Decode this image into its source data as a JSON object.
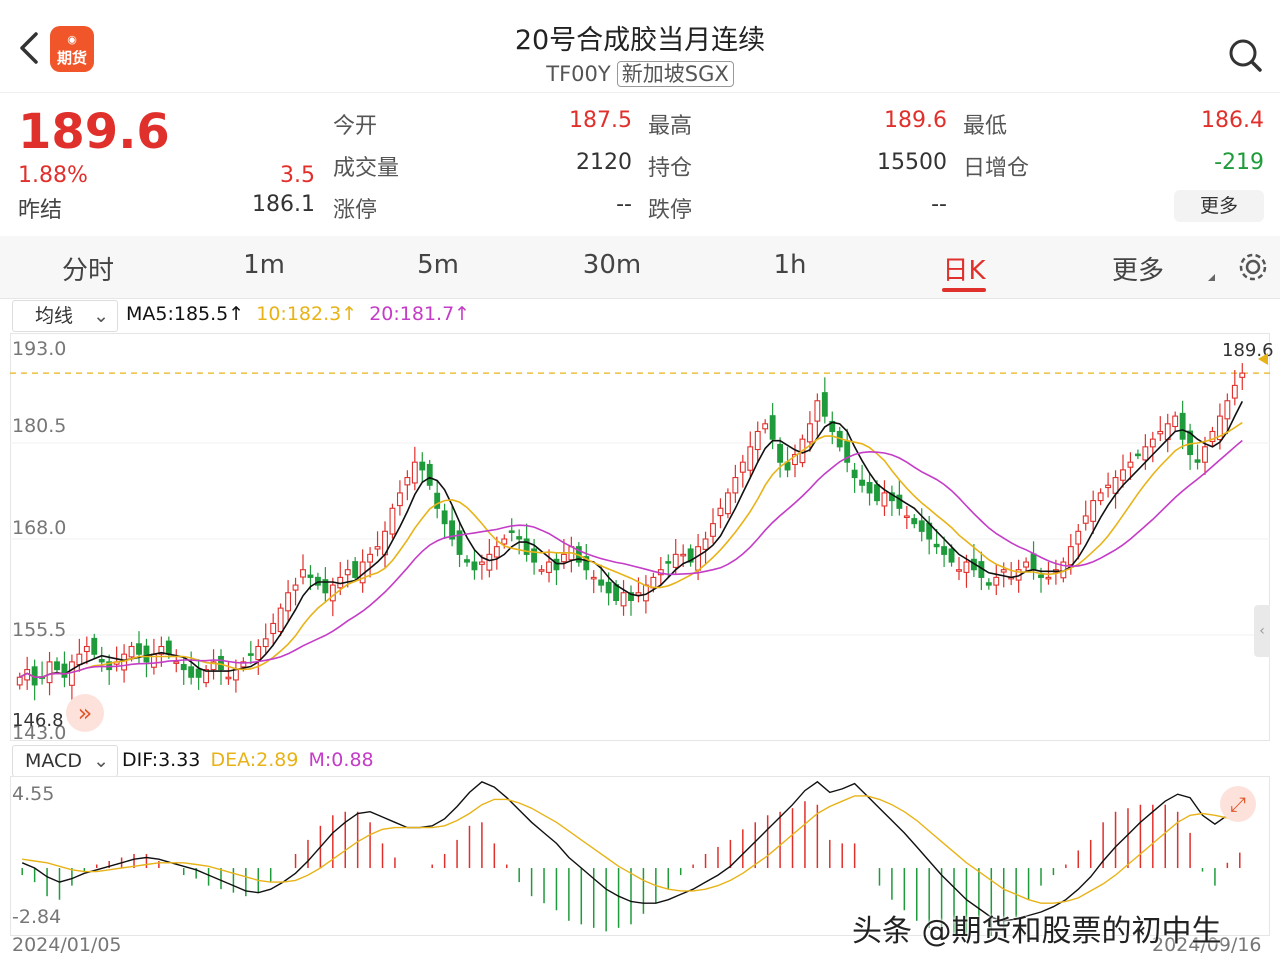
{
  "header": {
    "back_icon": "chevron-left-icon",
    "logo_text": "期货",
    "title": "20号合成胶当月连续",
    "code": "TF00Y",
    "exchange": "新加坡SGX",
    "search_icon": "search-icon"
  },
  "quote": {
    "price": "189.6",
    "change_pct": "1.88%",
    "change": "3.5",
    "prev_close_label": "昨结",
    "prev_close": "186.1",
    "open_label": "今开",
    "open": "187.5",
    "high_label": "最高",
    "high": "189.6",
    "low_label": "最低",
    "low": "186.4",
    "volume_label": "成交量",
    "volume": "2120",
    "oi_label": "持仓",
    "oi": "15500",
    "oi_change_label": "日增仓",
    "oi_change": "-219",
    "limit_up_label": "涨停",
    "limit_up": "--",
    "limit_down_label": "跌停",
    "limit_down": "--",
    "more_label": "更多",
    "up_color": "#e0302c",
    "down_color": "#1e9b3a"
  },
  "tabs": {
    "items": [
      "分时",
      "1m",
      "5m",
      "30m",
      "1h",
      "日K",
      "更多"
    ],
    "active": "日K",
    "gear_icon": "gear-icon"
  },
  "indicators": {
    "ma_select": "均线",
    "ma5": "MA5:185.5↑",
    "ma10": "10:182.3↑",
    "ma20": "20:181.7↑",
    "ma5_color": "#111111",
    "ma10_color": "#e8b318",
    "ma20_color": "#c43cc7",
    "macd_select": "MACD",
    "dif": "DIF:3.33",
    "dea": "DEA:2.89",
    "m": "M:0.88"
  },
  "chart_data": [
    {
      "type": "candlestick",
      "y_ticks": [
        "193.0",
        "180.5",
        "168.0",
        "155.5",
        "143.0"
      ],
      "ylim": [
        143.0,
        193.0
      ],
      "last_price_label": "189.6",
      "min_label": "146.8",
      "start_date": "2024/01/05",
      "end_date": "2024/09/16",
      "close_path": [
        150,
        151,
        149,
        150,
        152,
        151,
        150,
        152,
        153,
        154,
        153,
        152,
        151,
        152,
        153,
        154,
        153,
        152,
        153,
        154,
        153,
        152,
        151,
        150,
        150,
        151,
        152,
        151,
        150,
        151,
        152,
        153,
        154,
        155,
        157,
        159,
        161,
        162,
        164,
        163,
        162,
        161,
        162,
        163,
        164,
        163,
        165,
        166,
        167,
        169,
        172,
        174,
        176,
        178,
        177,
        175,
        172,
        170,
        168,
        166,
        165,
        164,
        165,
        166,
        167,
        168,
        169,
        168,
        166,
        165,
        164,
        165,
        164,
        166,
        167,
        165,
        164,
        163,
        162,
        161,
        160,
        161,
        160,
        161,
        162,
        163,
        164,
        165,
        166,
        166,
        165,
        167,
        168,
        170,
        172,
        174,
        176,
        178,
        180,
        182,
        183,
        181,
        178,
        177,
        179,
        181,
        183,
        186,
        184,
        182,
        180,
        178,
        176,
        175,
        174,
        173,
        174,
        173,
        172,
        171,
        170,
        169,
        168,
        167,
        166,
        165,
        164,
        165,
        164,
        163,
        162,
        163,
        164,
        163,
        164,
        165,
        164,
        163,
        163,
        164,
        165,
        167,
        169,
        171,
        173,
        174,
        175,
        176,
        177,
        178,
        179,
        180,
        181,
        182,
        183,
        184,
        181,
        179,
        178,
        180,
        182,
        184,
        186,
        188,
        189.6
      ],
      "dif_path": [
        0.3,
        0.0,
        -0.5,
        -0.8,
        -0.6,
        -0.3,
        -0.1,
        0.1,
        0.3,
        0.5,
        0.6,
        0.5,
        0.3,
        0.1,
        -0.1,
        -0.4,
        -0.7,
        -1.0,
        -1.3,
        -1.4,
        -1.2,
        -0.8,
        -0.3,
        0.4,
        1.2,
        2.0,
        2.6,
        3.1,
        3.2,
        2.9,
        2.6,
        2.3,
        2.3,
        2.4,
        2.8,
        3.5,
        4.3,
        4.9,
        4.6,
        4.0,
        3.3,
        2.6,
        2.0,
        1.4,
        0.6,
        0.0,
        -0.6,
        -1.2,
        -1.6,
        -1.9,
        -2.0,
        -2.0,
        -1.8,
        -1.5,
        -1.2,
        -0.8,
        -0.4,
        0.1,
        0.8,
        1.5,
        2.2,
        2.9,
        3.6,
        4.4,
        4.9,
        4.3,
        4.5,
        4.8,
        4.1,
        3.4,
        2.7,
        2.0,
        1.2,
        0.4,
        -0.4,
        -1.1,
        -1.8,
        -2.3,
        -2.8,
        -3.0,
        -2.9,
        -2.7,
        -2.5,
        -2.2,
        -1.8,
        -1.2,
        -0.5,
        0.4,
        1.2,
        1.9,
        2.6,
        3.2,
        3.8,
        4.2,
        4.0,
        3.0,
        2.5,
        3.0,
        3.33
      ],
      "dea_path": [
        0.5,
        0.4,
        0.3,
        0.1,
        -0.1,
        -0.2,
        -0.2,
        -0.1,
        0.0,
        0.1,
        0.2,
        0.3,
        0.3,
        0.3,
        0.2,
        0.1,
        -0.1,
        -0.3,
        -0.5,
        -0.7,
        -0.8,
        -0.8,
        -0.7,
        -0.4,
        0.0,
        0.5,
        1.0,
        1.5,
        1.9,
        2.2,
        2.3,
        2.3,
        2.3,
        2.3,
        2.4,
        2.7,
        3.1,
        3.6,
        3.9,
        3.9,
        3.7,
        3.4,
        3.0,
        2.6,
        2.1,
        1.6,
        1.1,
        0.6,
        0.1,
        -0.3,
        -0.7,
        -1.0,
        -1.2,
        -1.3,
        -1.3,
        -1.2,
        -1.0,
        -0.7,
        -0.3,
        0.2,
        0.7,
        1.3,
        1.9,
        2.5,
        3.1,
        3.5,
        3.8,
        4.1,
        4.1,
        3.9,
        3.6,
        3.2,
        2.7,
        2.1,
        1.5,
        0.9,
        0.3,
        -0.2,
        -0.7,
        -1.2,
        -1.5,
        -1.8,
        -2.0,
        -2.0,
        -1.9,
        -1.7,
        -1.3,
        -0.9,
        -0.4,
        0.2,
        0.8,
        1.4,
        2.0,
        2.6,
        3.0,
        3.1,
        3.0,
        2.85,
        2.89
      ],
      "macd_ylim": [
        -2.84,
        4.55
      ],
      "macd_y_ticks": [
        "4.55",
        "-2.84"
      ]
    }
  ],
  "controls": {
    "fast_forward_icon": "double-chevron-right-icon",
    "expand_icon": "expand-icon",
    "side_handle_icon": "chevron-left-small-icon"
  },
  "watermark": "头条 @期货和股票的初中生"
}
